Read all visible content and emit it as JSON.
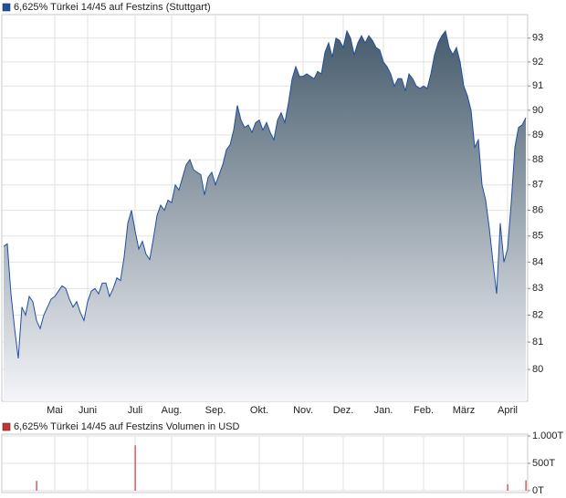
{
  "chart_data": [
    {
      "type": "area",
      "title": "6,625% Türkei 14/45 auf Festzins (Stuttgart)",
      "color": "#1f4fa3",
      "log": true,
      "grid": true,
      "ylim": [
        78.85,
        94
      ],
      "yticks": [
        80,
        81,
        82,
        83,
        84,
        85,
        86,
        87,
        88,
        89,
        90,
        91,
        92,
        93
      ],
      "categories": [
        null,
        null,
        null,
        null,
        null,
        null,
        null,
        null,
        null,
        null,
        null,
        null,
        null,
        null,
        "Mai",
        null,
        null,
        null,
        null,
        null,
        null,
        null,
        null,
        "Juni",
        null,
        null,
        null,
        null,
        null,
        null,
        null,
        null,
        null,
        null,
        null,
        null,
        "Juli",
        null,
        null,
        null,
        null,
        null,
        null,
        null,
        null,
        null,
        "Aug.",
        null,
        null,
        null,
        null,
        null,
        null,
        null,
        null,
        null,
        null,
        null,
        "Sep.",
        null,
        null,
        null,
        null,
        null,
        null,
        null,
        null,
        null,
        null,
        null,
        "Okt.",
        null,
        null,
        null,
        null,
        null,
        null,
        null,
        null,
        null,
        null,
        null,
        "Nov.",
        null,
        null,
        null,
        null,
        null,
        null,
        null,
        null,
        null,
        null,
        "Dez.",
        null,
        null,
        null,
        null,
        null,
        null,
        null,
        null,
        null,
        null,
        "Jan.",
        null,
        null,
        null,
        null,
        null,
        null,
        null,
        null,
        null,
        null,
        "Feb.",
        null,
        null,
        null,
        null,
        null,
        null,
        null,
        null,
        null,
        null,
        "März",
        null,
        null,
        null,
        null,
        null,
        null,
        null,
        null,
        null,
        null,
        null,
        "April",
        null,
        null,
        null,
        null,
        null
      ],
      "values": [
        84.6,
        84.7,
        82.8,
        81.5,
        80.4,
        82.3,
        82.0,
        82.7,
        82.5,
        81.8,
        81.5,
        82.0,
        82.3,
        82.6,
        82.7,
        82.9,
        83.1,
        83.0,
        82.6,
        82.3,
        82.5,
        82.1,
        81.8,
        82.5,
        82.9,
        83.0,
        82.8,
        83.2,
        83.2,
        82.7,
        83.0,
        83.4,
        83.3,
        84.2,
        85.5,
        86.0,
        85.2,
        84.5,
        84.8,
        84.3,
        84.1,
        84.9,
        85.8,
        86.2,
        86.0,
        86.4,
        86.3,
        87.0,
        86.8,
        87.3,
        87.8,
        88.0,
        87.6,
        87.5,
        87.4,
        86.6,
        87.3,
        87.5,
        87.0,
        87.4,
        87.8,
        88.4,
        88.6,
        89.2,
        90.2,
        89.6,
        89.3,
        89.4,
        89.1,
        89.5,
        89.6,
        89.2,
        89.5,
        89.1,
        88.8,
        89.6,
        89.9,
        89.5,
        90.3,
        91.3,
        91.8,
        91.4,
        91.4,
        91.5,
        91.4,
        91.3,
        91.6,
        91.5,
        92.4,
        92.8,
        92.2,
        93.0,
        92.9,
        92.6,
        93.3,
        93.0,
        92.3,
        92.8,
        93.1,
        92.8,
        93.1,
        92.9,
        92.6,
        92.5,
        92.0,
        91.8,
        91.5,
        91.0,
        91.3,
        91.3,
        90.8,
        91.5,
        91.3,
        91.0,
        90.9,
        91.0,
        90.9,
        91.5,
        92.3,
        92.8,
        93.1,
        93.3,
        92.6,
        92.3,
        92.6,
        92.0,
        91.0,
        90.6,
        90.0,
        88.5,
        88.8,
        87.0,
        86.4,
        85.3,
        84.0,
        82.8,
        85.5,
        84.0,
        84.5,
        86.3,
        88.5,
        89.3,
        89.4,
        89.7
      ]
    },
    {
      "type": "bar",
      "title": "6,625% Türkei 14/45 auf Festzins Volumen in USD",
      "color": "#cc3333",
      "grid": true,
      "ylim": [
        0,
        1000
      ],
      "yticks": [
        {
          "value": 0,
          "label": "0T"
        },
        {
          "value": 500,
          "label": "500T"
        },
        {
          "value": 1000,
          "label": "1.000T"
        }
      ],
      "values": [
        null,
        null,
        null,
        null,
        null,
        null,
        null,
        null,
        null,
        180,
        null,
        null,
        null,
        null,
        null,
        null,
        null,
        null,
        null,
        null,
        null,
        null,
        null,
        null,
        null,
        null,
        null,
        null,
        null,
        null,
        null,
        null,
        null,
        null,
        null,
        null,
        830,
        null,
        null,
        null,
        null,
        null,
        null,
        null,
        null,
        null,
        null,
        null,
        null,
        null,
        null,
        null,
        null,
        null,
        null,
        null,
        null,
        null,
        null,
        null,
        null,
        null,
        null,
        null,
        null,
        null,
        null,
        null,
        null,
        null,
        null,
        null,
        null,
        null,
        null,
        null,
        null,
        null,
        null,
        null,
        null,
        null,
        null,
        null,
        null,
        null,
        null,
        null,
        null,
        null,
        null,
        null,
        null,
        null,
        null,
        null,
        null,
        null,
        null,
        null,
        null,
        null,
        null,
        null,
        null,
        null,
        null,
        null,
        null,
        null,
        null,
        null,
        null,
        null,
        null,
        null,
        null,
        null,
        null,
        null,
        null,
        null,
        null,
        null,
        null,
        null,
        null,
        null,
        null,
        null,
        null,
        null,
        null,
        null,
        null,
        null,
        null,
        null,
        120,
        null,
        null,
        null,
        null,
        190
      ]
    }
  ]
}
